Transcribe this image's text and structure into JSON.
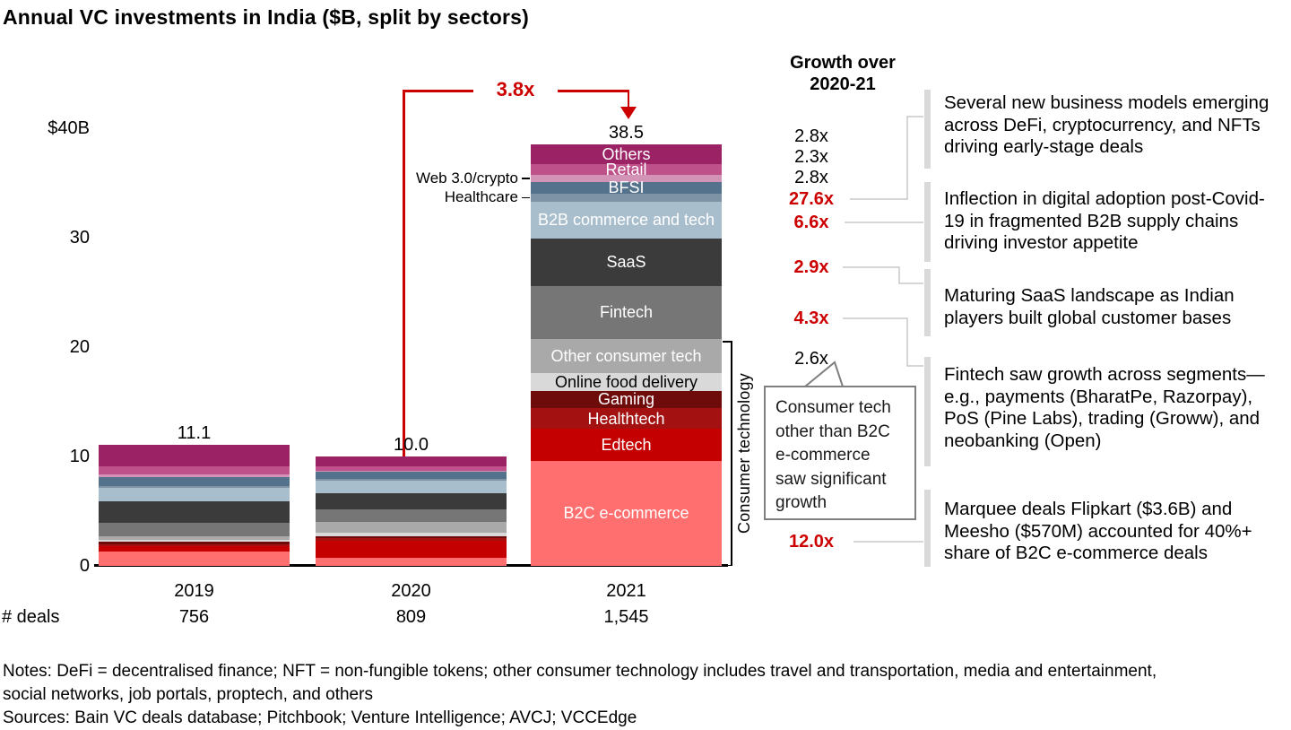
{
  "title": "Annual VC investments in India ($B, split by sectors)",
  "chart_data": {
    "type": "bar",
    "stacked": true,
    "unit": "$B",
    "title": "Annual VC investments in India ($B, split by sectors)",
    "categories": [
      "2019",
      "2020",
      "2021"
    ],
    "totals": [
      11.1,
      10.0,
      38.5
    ],
    "total_labels": [
      "11.1",
      "10.0",
      "38.5"
    ],
    "overall_growth_arrow": "3.8x",
    "y_axis": {
      "ticks": [
        {
          "label": "$40B",
          "value": 40
        },
        {
          "label": "30",
          "value": 30
        },
        {
          "label": "20",
          "value": 20
        },
        {
          "label": "10",
          "value": 10
        },
        {
          "label": "0",
          "value": 0
        }
      ],
      "max": 40,
      "gridlines": false
    },
    "deals_row": {
      "label": "# deals",
      "values": [
        "756",
        "809",
        "1,545"
      ]
    },
    "segments_note": "values in $B estimated from bar proportions; order is top of stack to bottom",
    "segments": [
      {
        "name": "Others",
        "color": "#9B2265",
        "values": [
          2.0,
          0.9,
          1.8
        ],
        "label_in_bar": true,
        "text_color": "#ffffff"
      },
      {
        "name": "Retail",
        "color": "#BE5189",
        "values": [
          0.7,
          0.45,
          1.0
        ],
        "label_in_bar": true,
        "text_color": "#ffffff"
      },
      {
        "name": "Web 3.0/crypto",
        "color": "#D393B6",
        "values": [
          0.3,
          0.05,
          0.6
        ],
        "label_in_bar": false,
        "outside_label": true
      },
      {
        "name": "BFSI",
        "color": "#54728C",
        "values": [
          0.8,
          0.65,
          1.1
        ],
        "label_in_bar": true,
        "text_color": "#ffffff"
      },
      {
        "name": "Healthcare",
        "color": "#7E94A6",
        "values": [
          0.2,
          0.15,
          0.7
        ],
        "label_in_bar": false,
        "outside_label": true
      },
      {
        "name": "B2B commerce and tech",
        "color": "#A9BECC",
        "values": [
          1.2,
          1.2,
          3.4
        ],
        "label_in_bar": true,
        "text_color": "#ffffff"
      },
      {
        "name": "SaaS",
        "color": "#3B3B3B",
        "values": [
          2.0,
          1.4,
          4.3
        ],
        "label_in_bar": true,
        "text_color": "#ffffff"
      },
      {
        "name": "Fintech",
        "color": "#767676",
        "values": [
          1.2,
          1.15,
          4.9
        ],
        "label_in_bar": true,
        "text_color": "#ffffff"
      },
      {
        "name": "Other consumer tech",
        "color": "#A9A9A9",
        "values": [
          0.35,
          1.05,
          3.1
        ],
        "label_in_bar": true,
        "text_color": "#ffffff",
        "hatch": true
      },
      {
        "name": "Online food delivery",
        "color": "#D9D9D9",
        "values": [
          0.15,
          0.3,
          1.6
        ],
        "label_in_bar": true,
        "text_color": "#000000",
        "hatch": true
      },
      {
        "name": "Gaming",
        "color": "#6E0B0B",
        "values": [
          0.2,
          0.15,
          1.6
        ],
        "label_in_bar": true,
        "text_color": "#ffffff"
      },
      {
        "name": "Healthtech",
        "color": "#A31111",
        "values": [
          0.2,
          0.25,
          1.9
        ],
        "label_in_bar": true,
        "text_color": "#ffffff"
      },
      {
        "name": "Edtech",
        "color": "#C40000",
        "values": [
          0.5,
          1.6,
          2.9
        ],
        "label_in_bar": true,
        "text_color": "#ffffff"
      },
      {
        "name": "B2C e-commerce",
        "color": "#FF6F6F",
        "values": [
          1.3,
          0.7,
          9.6
        ],
        "label_in_bar": true,
        "text_color": "#ffffff"
      }
    ],
    "consumer_technology_bracket": {
      "label": "Consumer technology",
      "covers": [
        "Other consumer tech",
        "Online food delivery",
        "Gaming",
        "Healthtech",
        "Edtech",
        "B2C e-commerce"
      ]
    }
  },
  "growth_column": {
    "header_line1": "Growth over",
    "header_line2": "2020-21",
    "emphasis_color": "#CC0000",
    "items": [
      {
        "value": "2.8x",
        "segment": "Others",
        "emphasis": false
      },
      {
        "value": "2.3x",
        "segment": "Retail",
        "emphasis": false
      },
      {
        "value": "2.8x",
        "segment": "BFSI",
        "emphasis": false
      },
      {
        "value": "27.6x",
        "segment": "Web 3.0/crypto",
        "emphasis": true
      },
      {
        "value": "6.6x",
        "segment": "B2B commerce and tech",
        "emphasis": true
      },
      {
        "value": "2.9x",
        "segment": "SaaS",
        "emphasis": true
      },
      {
        "value": "4.3x",
        "segment": "Fintech",
        "emphasis": true
      },
      {
        "value": "2.6x",
        "segment": "Other consumer tech",
        "emphasis": false
      },
      {
        "value": "12.0x",
        "segment": "B2C e-commerce",
        "emphasis": true
      }
    ]
  },
  "callout": {
    "text": "Consumer tech other than B2C e-commerce saw significant growth"
  },
  "annotations": [
    {
      "linked_growth": "27.6x",
      "text": "Several new business models emerging across DeFi, cryptocurrency, and NFTs driving early-stage deals"
    },
    {
      "linked_growth": "6.6x",
      "text": "Inflection in digital adoption post-Covid-19 in fragmented B2B supply chains driving investor appetite"
    },
    {
      "linked_growth": "2.9x",
      "text": "Maturing SaaS landscape as Indian players built global customer bases"
    },
    {
      "linked_growth": "4.3x",
      "text": "Fintech saw growth across segments—e.g., payments (BharatPe, Razorpay), PoS (Pine Labs), trading (Groww), and neobanking (Open)"
    },
    {
      "linked_growth": "12.0x",
      "text": "Marquee deals Flipkart ($3.6B) and Meesho ($570M) accounted for 40%+ share of B2C e-commerce deals"
    }
  ],
  "footer": {
    "notes_line1": "Notes: DeFi = decentralised finance; NFT = non-fungible tokens; other consumer technology includes travel and transportation, media and entertainment,",
    "notes_line2": "social networks, job portals, proptech, and others",
    "sources": "Sources: Bain VC deals database; Pitchbook; Venture Intelligence; AVCJ; VCCEdge"
  }
}
